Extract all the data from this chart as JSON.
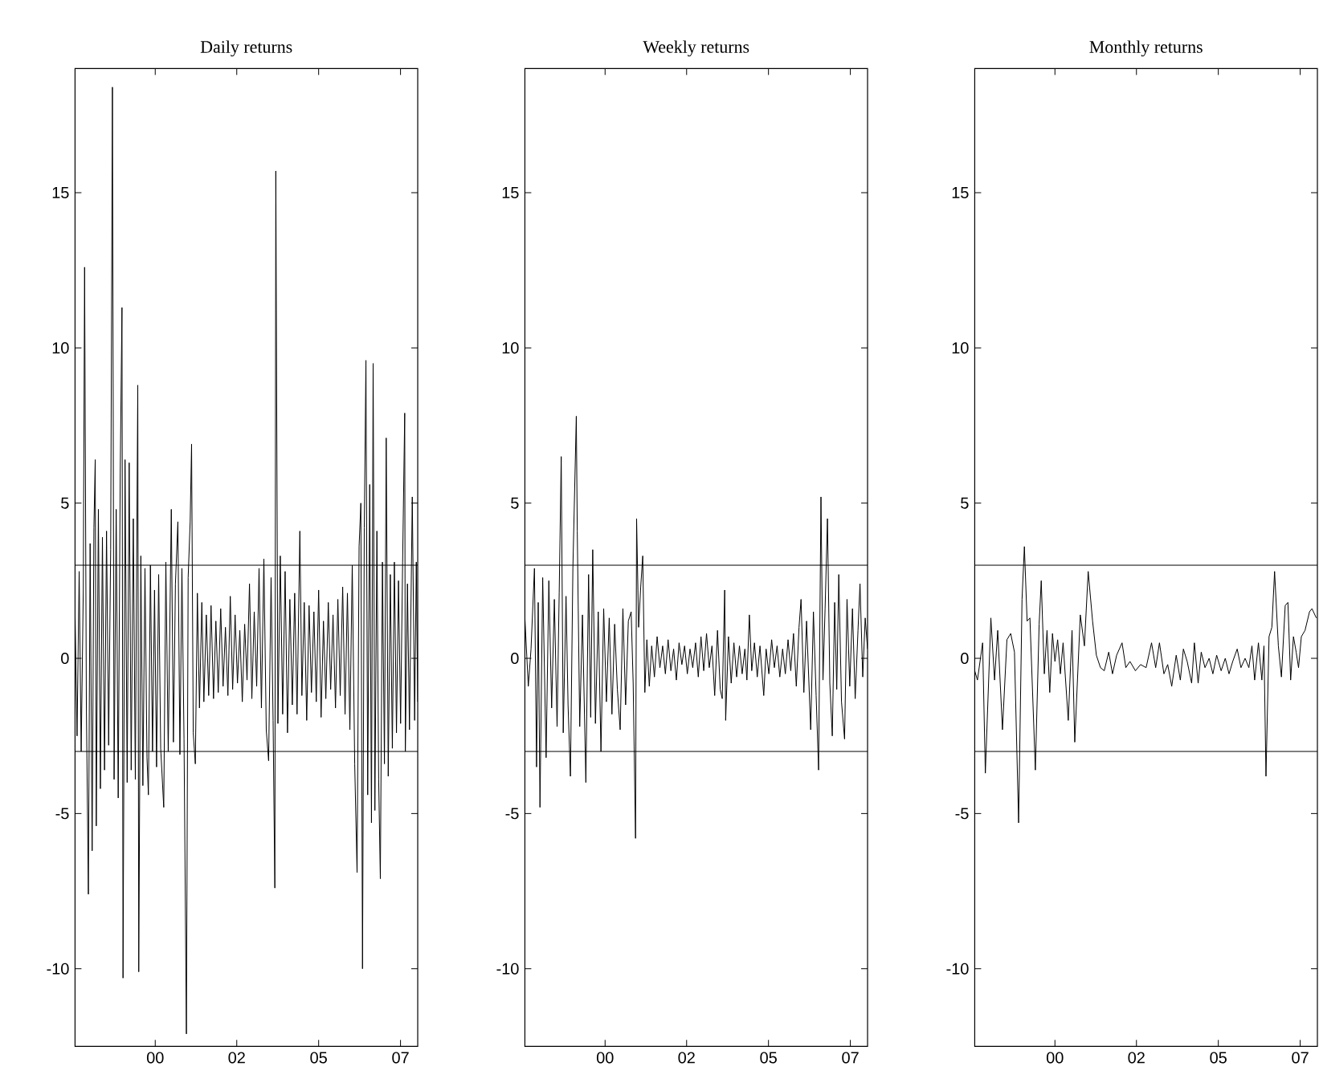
{
  "chart_data": [
    {
      "type": "line",
      "title": "Daily returns",
      "color": "#000000",
      "grid": false,
      "marker": "none",
      "line_style": "solid",
      "xlim": [
        "1997-07-01",
        "2008-03-10"
      ],
      "xticks": [
        {
          "value": "2000-01-01",
          "label": "00"
        },
        {
          "value": "2002-07-18",
          "label": "02"
        },
        {
          "value": "2005-02-05",
          "label": "05"
        },
        {
          "value": "2007-08-27",
          "label": "07"
        }
      ],
      "ylim": [
        -12.5,
        19
      ],
      "yticks": [
        -10,
        -5,
        0,
        5,
        10,
        15
      ],
      "ref_lines": [
        {
          "axis": "y",
          "value": 3
        },
        {
          "axis": "y",
          "value": -3
        }
      ],
      "x": [
        "1997-07-01",
        "1997-07-24",
        "1997-08-17",
        "1997-09-09",
        "1997-10-03",
        "1997-10-18",
        "1997-11-07",
        "1997-11-30",
        "1997-12-20",
        "1998-01-12",
        "1998-02-01",
        "1998-02-16",
        "1998-02-28",
        "1998-03-24",
        "1998-04-16",
        "1998-05-09",
        "1998-06-02",
        "1998-06-25",
        "1998-07-19",
        "1998-08-11",
        "1998-08-31",
        "1998-09-19",
        "1998-10-13",
        "1998-11-05",
        "1998-11-28",
        "1998-12-18",
        "1998-12-30",
        "1999-01-22",
        "1999-02-15",
        "1999-03-10",
        "1999-04-02",
        "1999-04-26",
        "1999-05-19",
        "1999-06-16",
        "1999-06-27",
        "1999-07-21",
        "1999-08-13",
        "1999-09-06",
        "1999-09-29",
        "1999-10-15",
        "1999-11-07",
        "1999-12-01",
        "1999-12-24",
        "2000-01-16",
        "2000-02-09",
        "2000-03-03",
        "2000-04-07",
        "2000-05-01",
        "2000-05-28",
        "2000-07-02",
        "2000-07-26",
        "2000-08-18",
        "2000-09-15",
        "2000-10-08",
        "2000-10-31",
        "2000-11-24",
        "2000-12-21",
        "2001-01-10",
        "2001-02-02",
        "2001-02-18",
        "2001-03-09",
        "2001-04-02",
        "2001-04-25",
        "2001-05-19",
        "2001-06-15",
        "2001-07-08",
        "2001-08-05",
        "2001-09-01",
        "2001-09-28",
        "2001-10-26",
        "2001-11-22",
        "2001-12-19",
        "2002-01-16",
        "2002-02-12",
        "2002-03-11",
        "2002-04-08",
        "2002-05-05",
        "2002-06-01",
        "2002-06-29",
        "2002-07-26",
        "2002-08-22",
        "2002-09-19",
        "2002-10-16",
        "2002-11-12",
        "2002-12-10",
        "2003-01-06",
        "2003-02-02",
        "2003-03-02",
        "2003-03-29",
        "2003-04-25",
        "2003-05-23",
        "2003-06-19",
        "2003-07-16",
        "2003-08-13",
        "2003-09-05",
        "2003-09-25",
        "2003-10-06",
        "2003-10-30",
        "2003-11-26",
        "2003-12-23",
        "2004-01-20",
        "2004-02-16",
        "2004-03-14",
        "2004-04-11",
        "2004-05-08",
        "2004-06-04",
        "2004-07-06",
        "2004-07-29",
        "2004-08-25",
        "2004-09-22",
        "2004-10-19",
        "2004-11-15",
        "2004-12-13",
        "2005-01-09",
        "2005-02-05",
        "2005-03-05",
        "2005-04-01",
        "2005-04-28",
        "2005-05-26",
        "2005-06-22",
        "2005-07-19",
        "2005-08-16",
        "2005-09-12",
        "2005-10-09",
        "2005-11-06",
        "2005-12-03",
        "2005-12-30",
        "2006-01-27",
        "2006-02-23",
        "2006-03-23",
        "2006-04-19",
        "2006-05-12",
        "2006-06-01",
        "2006-06-20",
        "2006-07-10",
        "2006-07-29",
        "2006-08-18",
        "2006-09-10",
        "2006-09-30",
        "2006-10-19",
        "2006-11-08",
        "2006-12-01",
        "2006-12-21",
        "2007-01-09",
        "2007-02-02",
        "2007-02-25",
        "2007-03-17",
        "2007-04-09",
        "2007-05-03",
        "2007-05-26",
        "2007-06-18",
        "2007-07-12",
        "2007-08-04",
        "2007-08-28",
        "2007-09-20",
        "2007-10-14",
        "2007-10-21",
        "2007-11-14",
        "2007-12-07",
        "2008-01-08",
        "2008-02-04",
        "2008-02-23",
        "2008-03-10"
      ],
      "values": [
        1.5,
        -2.5,
        2.8,
        -3.0,
        2.2,
        12.6,
        -1.5,
        -7.6,
        3.7,
        -6.2,
        4.2,
        6.4,
        -5.4,
        4.8,
        -4.2,
        3.9,
        -3.6,
        4.1,
        -2.8,
        3.5,
        18.4,
        -3.9,
        4.8,
        -4.5,
        6.0,
        11.3,
        -10.3,
        6.4,
        -4.0,
        6.3,
        -3.6,
        4.5,
        -3.9,
        8.8,
        -10.1,
        3.3,
        -4.1,
        2.9,
        -3.2,
        -4.4,
        3.0,
        -3.0,
        2.2,
        -3.5,
        2.7,
        -2.9,
        -4.8,
        3.1,
        -3.0,
        4.8,
        -2.7,
        2.4,
        4.4,
        -3.1,
        2.9,
        -2.6,
        -12.1,
        2.6,
        4.4,
        6.9,
        -2.4,
        -3.4,
        2.1,
        -1.6,
        1.8,
        -1.4,
        1.4,
        -1.2,
        1.7,
        -1.3,
        1.2,
        -1.1,
        1.6,
        -0.9,
        1.0,
        -1.2,
        2.0,
        -1.0,
        1.4,
        -0.8,
        0.9,
        -1.4,
        1.1,
        -0.7,
        2.4,
        -1.3,
        1.5,
        -0.9,
        2.9,
        -1.6,
        3.2,
        -2.3,
        -3.3,
        2.6,
        -2.0,
        -7.4,
        15.7,
        -2.1,
        3.3,
        -1.8,
        2.8,
        -2.4,
        1.9,
        -1.5,
        2.1,
        -1.8,
        4.1,
        -1.2,
        1.8,
        -2.0,
        1.7,
        -1.1,
        1.5,
        -1.4,
        2.2,
        -1.9,
        1.2,
        -1.3,
        1.8,
        -1.0,
        1.4,
        -1.6,
        1.9,
        -1.2,
        2.3,
        -1.8,
        2.1,
        -2.3,
        3.0,
        -3.4,
        -6.9,
        3.6,
        5.0,
        -10.0,
        4.2,
        9.6,
        -4.4,
        5.6,
        -5.3,
        9.5,
        -4.9,
        4.1,
        -3.9,
        -7.1,
        3.1,
        -3.4,
        7.1,
        -3.8,
        2.7,
        -2.9,
        3.1,
        -2.4,
        2.5,
        -2.1,
        3.1,
        7.9,
        -3.0,
        2.4,
        -2.3,
        5.2,
        -2.0,
        3.1,
        -1.4
      ]
    },
    {
      "type": "line",
      "title": "Weekly returns",
      "color": "#000000",
      "grid": false,
      "marker": "none",
      "line_style": "solid",
      "xlim": [
        "1997-07-01",
        "2008-03-10"
      ],
      "xticks": [
        {
          "value": "2000-01-01",
          "label": "00"
        },
        {
          "value": "2002-07-18",
          "label": "02"
        },
        {
          "value": "2005-02-05",
          "label": "05"
        },
        {
          "value": "2007-08-27",
          "label": "07"
        }
      ],
      "ylim": [
        -12.5,
        19
      ],
      "yticks": [
        -10,
        -5,
        0,
        5,
        10,
        15
      ],
      "ref_lines": [
        {
          "axis": "y",
          "value": 3
        },
        {
          "axis": "y",
          "value": -3
        }
      ],
      "x": [
        "1997-07-01",
        "1997-08-09",
        "1997-09-09",
        "1997-10-18",
        "1997-11-11",
        "1997-11-30",
        "1997-12-20",
        "1998-01-20",
        "1998-02-28",
        "1998-03-31",
        "1998-05-02",
        "1998-06-02",
        "1998-07-03",
        "1998-07-27",
        "1998-08-19",
        "1998-09-11",
        "1998-10-13",
        "1998-11-05",
        "1998-12-02",
        "1998-12-30",
        "1999-02-07",
        "1999-02-18",
        "1999-03-18",
        "1999-04-18",
        "1999-05-27",
        "1999-06-27",
        "1999-07-21",
        "1999-08-13",
        "1999-09-13",
        "1999-10-15",
        "1999-11-15",
        "1999-12-16",
        "2000-01-16",
        "2000-02-17",
        "2000-03-19",
        "2000-04-19",
        "2000-05-20",
        "2000-06-21",
        "2000-07-22",
        "2000-08-22",
        "2000-09-22",
        "2000-10-24",
        "2000-11-16",
        "2000-12-13",
        "2000-12-25",
        "2001-01-17",
        "2001-02-10",
        "2001-03-05",
        "2001-03-29",
        "2001-04-21",
        "2001-05-19",
        "2001-06-15",
        "2001-07-16",
        "2001-08-16",
        "2001-09-17",
        "2001-10-18",
        "2001-11-18",
        "2001-12-19",
        "2002-01-20",
        "2002-02-20",
        "2002-03-23",
        "2002-04-23",
        "2002-05-25",
        "2002-06-25",
        "2002-07-26",
        "2002-08-26",
        "2002-09-26",
        "2002-10-28",
        "2002-11-28",
        "2002-12-29",
        "2003-01-29",
        "2003-03-02",
        "2003-04-02",
        "2003-05-03",
        "2003-06-03",
        "2003-07-05",
        "2003-08-05",
        "2003-08-28",
        "2003-09-25",
        "2003-10-06",
        "2003-11-07",
        "2003-12-08",
        "2004-01-08",
        "2004-02-08",
        "2004-03-11",
        "2004-04-11",
        "2004-05-12",
        "2004-06-04",
        "2004-07-02",
        "2004-07-29",
        "2004-08-29",
        "2004-09-30",
        "2004-10-31",
        "2004-12-13",
        "2005-01-09",
        "2005-02-09",
        "2005-03-13",
        "2005-04-13",
        "2005-05-14",
        "2005-06-14",
        "2005-07-16",
        "2005-08-16",
        "2005-09-16",
        "2005-10-17",
        "2005-11-17",
        "2005-12-19",
        "2006-01-19",
        "2006-02-11",
        "2006-03-15",
        "2006-04-15",
        "2006-06-01",
        "2006-07-02",
        "2006-08-02",
        "2006-08-30",
        "2006-09-26",
        "2006-10-19",
        "2006-11-12",
        "2006-12-09",
        "2007-01-05",
        "2007-02-02",
        "2007-03-01",
        "2007-03-25",
        "2007-04-17",
        "2007-05-18",
        "2007-06-22",
        "2007-07-20",
        "2007-08-20",
        "2007-09-20",
        "2007-10-21",
        "2007-11-22",
        "2007-12-15",
        "2008-01-15",
        "2008-02-12",
        "2008-03-10"
      ],
      "values": [
        1.3,
        -0.9,
        0.3,
        2.9,
        -3.5,
        1.8,
        -4.8,
        2.6,
        -3.2,
        2.5,
        -1.6,
        1.9,
        -2.2,
        2.1,
        6.5,
        -2.4,
        2.0,
        -1.5,
        -3.8,
        2.9,
        7.8,
        4.1,
        -2.2,
        1.4,
        -4.0,
        2.7,
        -1.9,
        3.5,
        -2.1,
        1.5,
        -3.0,
        1.6,
        -1.4,
        1.3,
        -1.8,
        1.1,
        -1.0,
        -2.3,
        1.6,
        -1.5,
        1.2,
        1.5,
        -0.8,
        -5.8,
        4.5,
        1.0,
        2.3,
        3.3,
        -1.1,
        0.6,
        -0.9,
        0.4,
        -0.6,
        0.7,
        -0.3,
        0.4,
        -0.5,
        0.6,
        -0.4,
        0.3,
        -0.7,
        0.5,
        -0.2,
        0.4,
        -0.5,
        0.3,
        -0.3,
        0.5,
        -0.6,
        0.7,
        -0.4,
        0.8,
        -0.3,
        0.4,
        -1.2,
        0.9,
        -1.0,
        -1.3,
        2.2,
        -2.0,
        0.7,
        -0.8,
        0.5,
        -0.6,
        0.4,
        -0.5,
        0.3,
        -0.7,
        1.4,
        -0.4,
        0.5,
        -0.6,
        0.4,
        -1.2,
        0.3,
        -0.5,
        0.6,
        -0.3,
        0.4,
        -0.6,
        0.3,
        -0.5,
        0.6,
        -0.4,
        0.8,
        -0.9,
        1.0,
        1.9,
        -1.1,
        1.2,
        -2.3,
        1.5,
        -1.2,
        -3.6,
        5.2,
        -0.7,
        1.6,
        4.5,
        -0.8,
        -2.5,
        1.8,
        -1.0,
        2.7,
        -1.4,
        -2.6,
        1.9,
        -0.9,
        1.6,
        -1.3,
        0.9,
        2.4,
        -0.6,
        1.3,
        0.3
      ]
    },
    {
      "type": "line",
      "title": "Monthly returns",
      "color": "#000000",
      "grid": false,
      "marker": "none",
      "line_style": "solid",
      "xlim": [
        "1997-07-01",
        "2008-03-10"
      ],
      "xticks": [
        {
          "value": "2000-01-01",
          "label": "00"
        },
        {
          "value": "2002-07-18",
          "label": "02"
        },
        {
          "value": "2005-02-05",
          "label": "05"
        },
        {
          "value": "2007-08-27",
          "label": "07"
        }
      ],
      "ylim": [
        -12.5,
        19
      ],
      "yticks": [
        -10,
        -5,
        0,
        5,
        10,
        15
      ],
      "ref_lines": [
        {
          "axis": "y",
          "value": 3
        },
        {
          "axis": "y",
          "value": -3
        }
      ],
      "x": [
        "1997-07-01",
        "1997-08-01",
        "1997-09-29",
        "1997-10-30",
        "1998-01-01",
        "1998-02-12",
        "1998-03-20",
        "1998-05-13",
        "1998-07-03",
        "1998-08-15",
        "1998-09-27",
        "1998-11-13",
        "1998-12-22",
        "1999-01-18",
        "1999-02-18",
        "1999-03-22",
        "1999-05-23",
        "1999-07-05",
        "1999-07-29",
        "1999-09-02",
        "1999-10-03",
        "1999-11-03",
        "1999-12-04",
        "2000-01-01",
        "2000-02-01",
        "2000-03-03",
        "2000-04-03",
        "2000-06-01",
        "2000-07-14",
        "2000-08-14",
        "2000-10-16",
        "2000-12-02",
        "2001-01-14",
        "2001-03-05",
        "2001-04-17",
        "2001-06-03",
        "2001-07-16",
        "2001-09-05",
        "2001-10-18",
        "2001-12-04",
        "2002-02-04",
        "2002-03-19",
        "2002-05-05",
        "2002-07-06",
        "2002-09-03",
        "2002-11-05",
        "2003-01-06",
        "2003-02-22",
        "2003-04-06",
        "2003-05-27",
        "2003-07-09",
        "2003-08-24",
        "2003-10-14",
        "2003-11-30",
        "2004-01-04",
        "2004-02-16",
        "2004-04-07",
        "2004-05-08",
        "2004-06-20",
        "2004-07-25",
        "2004-09-06",
        "2004-10-23",
        "2004-12-05",
        "2005-01-17",
        "2005-03-09",
        "2005-04-25",
        "2005-06-07",
        "2005-07-19",
        "2005-09-08",
        "2005-10-21",
        "2005-12-07",
        "2006-01-19",
        "2006-02-23",
        "2006-03-26",
        "2006-05-08",
        "2006-06-16",
        "2006-07-10",
        "2006-08-02",
        "2006-09-06",
        "2006-10-08",
        "2006-11-08",
        "2006-12-21",
        "2007-01-25",
        "2007-03-09",
        "2007-04-09",
        "2007-05-10",
        "2007-06-11",
        "2007-07-12",
        "2007-08-08",
        "2007-09-09",
        "2007-10-21",
        "2007-12-11",
        "2008-01-08",
        "2008-02-27"
      ],
      "values": [
        -0.4,
        -0.7,
        0.5,
        -3.7,
        1.3,
        -0.7,
        0.9,
        -2.3,
        0.6,
        0.8,
        0.2,
        -5.3,
        1.9,
        3.6,
        1.2,
        1.3,
        -3.6,
        1.1,
        2.5,
        -0.5,
        0.9,
        -1.1,
        0.8,
        -0.1,
        0.6,
        -0.5,
        0.5,
        -2.0,
        0.9,
        -2.7,
        1.4,
        0.4,
        2.8,
        1.2,
        0.1,
        -0.3,
        -0.4,
        0.2,
        -0.5,
        0.1,
        0.5,
        -0.3,
        -0.1,
        -0.4,
        -0.2,
        -0.3,
        0.5,
        -0.3,
        0.5,
        -0.5,
        -0.2,
        -0.9,
        0.1,
        -0.7,
        0.3,
        -0.1,
        -0.8,
        0.5,
        -0.8,
        0.2,
        -0.3,
        0.0,
        -0.5,
        0.1,
        -0.4,
        0.0,
        -0.5,
        -0.1,
        0.3,
        -0.3,
        0.0,
        -0.3,
        0.4,
        -0.7,
        0.5,
        -0.7,
        0.4,
        -3.8,
        0.7,
        1.0,
        2.8,
        0.4,
        -0.6,
        1.7,
        1.8,
        -0.7,
        0.7,
        0.2,
        -0.3,
        0.7,
        0.9,
        1.5,
        1.6,
        1.3
      ]
    }
  ]
}
